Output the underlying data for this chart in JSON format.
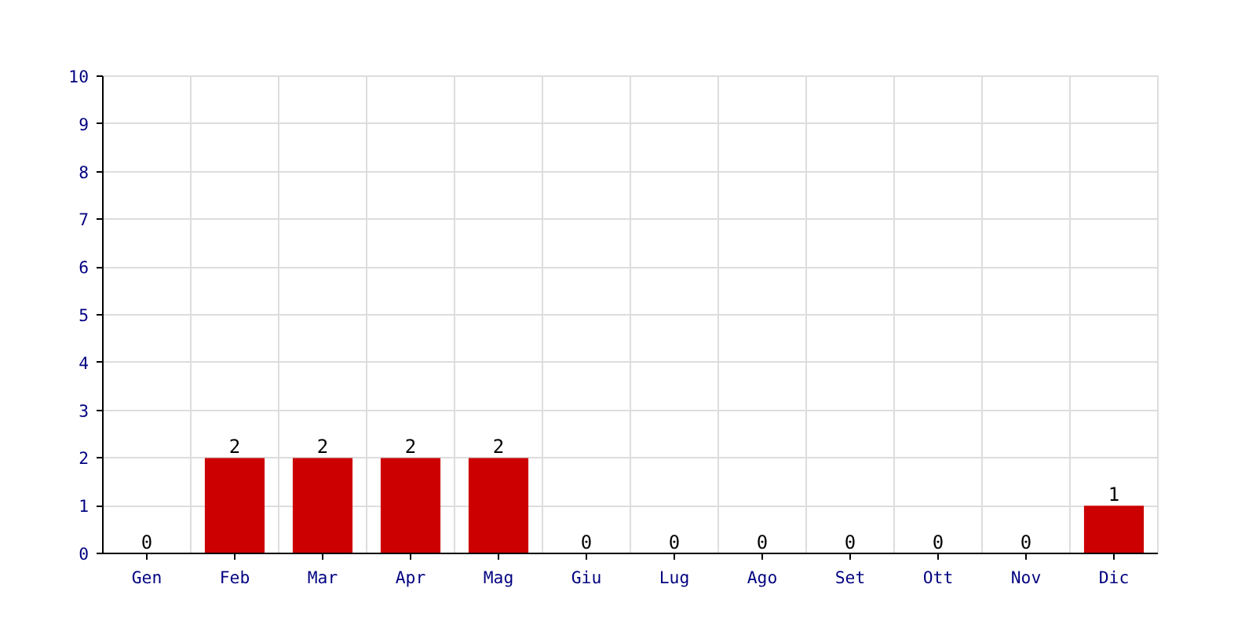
{
  "chart_data": {
    "type": "bar",
    "categories": [
      "Gen",
      "Feb",
      "Mar",
      "Apr",
      "Mag",
      "Giu",
      "Lug",
      "Ago",
      "Set",
      "Ott",
      "Nov",
      "Dic"
    ],
    "values": [
      0,
      2,
      2,
      2,
      2,
      0,
      0,
      0,
      0,
      0,
      0,
      1
    ],
    "color": "#cc0000",
    "ylim": [
      0,
      10
    ],
    "yticks": [
      0,
      1,
      2,
      3,
      4,
      5,
      6,
      7,
      8,
      9,
      10
    ],
    "grid": true,
    "data_labels": true
  }
}
